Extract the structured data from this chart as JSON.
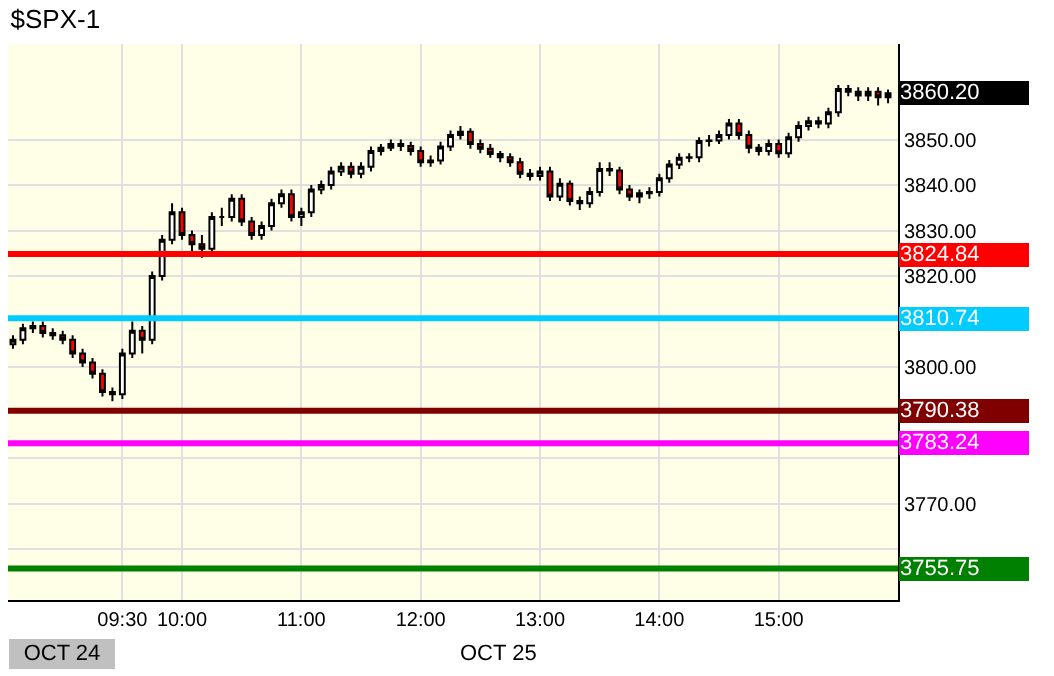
{
  "chart_data": {
    "type": "candlestick",
    "title": "$SPX-1",
    "categories": [
      null,
      null,
      null,
      null,
      null,
      null,
      null,
      null,
      null,
      null,
      null,
      "09:30",
      null,
      null,
      null,
      null,
      null,
      "10:00",
      null,
      null,
      null,
      null,
      null,
      null,
      null,
      null,
      null,
      null,
      null,
      "11:00",
      null,
      null,
      null,
      null,
      null,
      null,
      null,
      null,
      null,
      null,
      null,
      "12:00",
      null,
      null,
      null,
      null,
      null,
      null,
      null,
      null,
      null,
      null,
      null,
      "13:00",
      null,
      null,
      null,
      null,
      null,
      null,
      null,
      null,
      null,
      null,
      null,
      "14:00",
      null,
      null,
      null,
      null,
      null,
      null,
      null,
      null,
      null,
      null,
      null,
      "15:00",
      null,
      null,
      null,
      null,
      null,
      null,
      null,
      null,
      null,
      null,
      null
    ],
    "ohlc": [
      [
        3805,
        3807,
        3804,
        3806
      ],
      [
        3806,
        3809.5,
        3805,
        3808.5
      ],
      [
        3808.5,
        3810,
        3807.5,
        3809
      ],
      [
        3809,
        3810,
        3806.5,
        3807.5
      ],
      [
        3807.5,
        3808.5,
        3806,
        3807
      ],
      [
        3807,
        3808,
        3805,
        3806
      ],
      [
        3806,
        3807,
        3802,
        3803
      ],
      [
        3803,
        3804,
        3800,
        3801
      ],
      [
        3801,
        3802,
        3797.5,
        3798.5
      ],
      [
        3798.5,
        3799.5,
        3793.5,
        3794.5
      ],
      [
        3794.5,
        3795.5,
        3792.5,
        3794
      ],
      [
        3794,
        3804,
        3793,
        3803
      ],
      [
        3803,
        3810,
        3802,
        3808
      ],
      [
        3808,
        3809,
        3803,
        3806
      ],
      [
        3806,
        3821,
        3805,
        3820
      ],
      [
        3820,
        3829,
        3819,
        3828
      ],
      [
        3828,
        3836,
        3827,
        3834
      ],
      [
        3834,
        3835,
        3828,
        3829
      ],
      [
        3829,
        3830,
        3825,
        3827
      ],
      [
        3827,
        3829,
        3824,
        3826
      ],
      [
        3826,
        3834,
        3825,
        3833
      ],
      [
        3833,
        3835,
        3831,
        3833
      ],
      [
        3833,
        3838,
        3832,
        3837
      ],
      [
        3837,
        3838,
        3831,
        3832
      ],
      [
        3832,
        3833,
        3828,
        3829
      ],
      [
        3829,
        3832,
        3828,
        3831
      ],
      [
        3831,
        3837,
        3830,
        3836
      ],
      [
        3836,
        3839,
        3835,
        3838
      ],
      [
        3838,
        3839,
        3832,
        3833
      ],
      [
        3833,
        3835,
        3831,
        3834
      ],
      [
        3834,
        3840,
        3833,
        3839
      ],
      [
        3839,
        3841,
        3838,
        3840
      ],
      [
        3840,
        3844,
        3839,
        3843
      ],
      [
        3843,
        3845,
        3842,
        3844
      ],
      [
        3844,
        3845,
        3841.5,
        3842.5
      ],
      [
        3842.5,
        3845,
        3841.5,
        3844
      ],
      [
        3844,
        3848.5,
        3843,
        3847.5
      ],
      [
        3847.5,
        3849,
        3846.5,
        3848.2
      ],
      [
        3848.2,
        3850,
        3847.5,
        3849
      ],
      [
        3849,
        3850,
        3847.5,
        3848.6
      ],
      [
        3848.6,
        3849.5,
        3846.5,
        3847.5
      ],
      [
        3847.5,
        3848.5,
        3844,
        3845
      ],
      [
        3845,
        3846.5,
        3844,
        3845.4
      ],
      [
        3845.4,
        3849.5,
        3844.5,
        3848.5
      ],
      [
        3848.5,
        3852,
        3847.5,
        3851
      ],
      [
        3851,
        3853,
        3850,
        3851.7
      ],
      [
        3851.7,
        3852.5,
        3848,
        3849
      ],
      [
        3849,
        3850,
        3847,
        3848
      ],
      [
        3848,
        3849,
        3846,
        3846.8
      ],
      [
        3846.8,
        3847.5,
        3845,
        3846.1
      ],
      [
        3846.1,
        3847,
        3844,
        3845
      ],
      [
        3845,
        3846,
        3841.5,
        3842.5
      ],
      [
        3842.5,
        3843.5,
        3841,
        3842
      ],
      [
        3842,
        3844,
        3841,
        3843
      ],
      [
        3843,
        3844,
        3836.5,
        3837.5
      ],
      [
        3837.5,
        3841.5,
        3836.5,
        3840.3
      ],
      [
        3840.3,
        3841,
        3835.5,
        3836.5
      ],
      [
        3836.5,
        3837.5,
        3834.5,
        3836
      ],
      [
        3836,
        3839.5,
        3835,
        3838.5
      ],
      [
        3838.5,
        3845,
        3837.5,
        3843.5
      ],
      [
        3843.5,
        3845,
        3842,
        3843.2
      ],
      [
        3843.2,
        3844,
        3838,
        3839
      ],
      [
        3839,
        3840,
        3836.5,
        3837.5
      ],
      [
        3837.5,
        3839,
        3836,
        3838.2
      ],
      [
        3838.2,
        3839.5,
        3837,
        3838.5
      ],
      [
        3838.5,
        3842.5,
        3837.5,
        3841.5
      ],
      [
        3841.5,
        3845.5,
        3840.5,
        3844.5
      ],
      [
        3844.5,
        3847,
        3843.5,
        3846
      ],
      [
        3846,
        3847,
        3845,
        3846.1
      ],
      [
        3846.1,
        3850.5,
        3845,
        3849.7
      ],
      [
        3849.7,
        3851,
        3848.5,
        3849.8
      ],
      [
        3849.8,
        3852,
        3849,
        3851
      ],
      [
        3851,
        3854.5,
        3850,
        3853.5
      ],
      [
        3853.5,
        3854.5,
        3850,
        3851
      ],
      [
        3851,
        3852,
        3847,
        3848.2
      ],
      [
        3848.2,
        3849,
        3846.5,
        3847.5
      ],
      [
        3847.5,
        3850,
        3846.5,
        3849
      ],
      [
        3849,
        3850,
        3846,
        3847
      ],
      [
        3847,
        3851.5,
        3846,
        3850.5
      ],
      [
        3850.5,
        3854,
        3849.5,
        3853
      ],
      [
        3853,
        3855,
        3852,
        3854
      ],
      [
        3854,
        3855,
        3852.5,
        3853.5
      ],
      [
        3853.5,
        3857,
        3852.5,
        3856
      ],
      [
        3856,
        3862,
        3855,
        3861.1
      ],
      [
        3861.1,
        3862,
        3859.5,
        3860.5
      ],
      [
        3860.5,
        3861.5,
        3858.5,
        3859.7
      ],
      [
        3859.7,
        3861.5,
        3858.5,
        3860.5
      ],
      [
        3860.5,
        3861.5,
        3857.5,
        3859.3
      ],
      [
        3859.3,
        3861,
        3858,
        3860.2
      ]
    ],
    "ylim": [
      3748.8,
      3871
    ],
    "yticks": [
      {
        "value": 3760,
        "label": null
      },
      {
        "value": 3770,
        "label": "3770.00"
      },
      {
        "value": 3780,
        "label": null
      },
      {
        "value": 3800,
        "label": "3800.00"
      },
      {
        "value": 3820,
        "label": "3820.00"
      },
      {
        "value": 3830,
        "label": "3830.00"
      },
      {
        "value": 3840,
        "label": "3840.00"
      },
      {
        "value": 3850,
        "label": "3850.00"
      }
    ],
    "ref_lines": [
      {
        "axis": "y",
        "value": 3824.84,
        "label": "3824.84",
        "color": "#ff0000"
      },
      {
        "axis": "y",
        "value": 3810.74,
        "label": "3810.74",
        "color": "#00ccff"
      },
      {
        "axis": "y",
        "value": 3790.38,
        "label": "3790.38",
        "color": "#800000"
      },
      {
        "axis": "y",
        "value": 3783.24,
        "label": "3783.24",
        "color": "#ff00ff"
      },
      {
        "axis": "y",
        "value": 3755.75,
        "label": "3755.75",
        "color": "#008000"
      }
    ],
    "annotations": [
      "3860.20",
      "OCT 24",
      "OCT 25"
    ],
    "grid": true
  }
}
